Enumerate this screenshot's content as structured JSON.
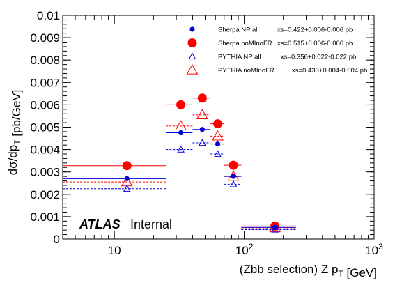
{
  "chart_data": {
    "type": "scatter",
    "xscale": "log",
    "xlim": [
      4,
      1000
    ],
    "ylim": [
      0,
      0.01
    ],
    "xlabel": "(Zbb selection) Z p_T [GeV]",
    "ylabel": "dσ/dp_T [pb/GeV]",
    "x_ticks": [
      {
        "value": 10,
        "label": "10"
      },
      {
        "value": 100,
        "label": "10^2"
      },
      {
        "value": 1000,
        "label": "10^3"
      }
    ],
    "y_ticks": [
      {
        "value": 0,
        "label": "0"
      },
      {
        "value": 0.001,
        "label": "0.001"
      },
      {
        "value": 0.002,
        "label": "0.002"
      },
      {
        "value": 0.003,
        "label": "0.003"
      },
      {
        "value": 0.004,
        "label": "0.004"
      },
      {
        "value": 0.005,
        "label": "0.005"
      },
      {
        "value": 0.006,
        "label": "0.006"
      },
      {
        "value": 0.007,
        "label": "0.007"
      },
      {
        "value": 0.008,
        "label": "0.008"
      },
      {
        "value": 0.009,
        "label": "0.009"
      },
      {
        "value": 0.01,
        "label": "0.01"
      }
    ],
    "series": [
      {
        "name": "Sherpa NP all",
        "xs_label": "xs=0.422+0.006-0.006 pb",
        "marker": "circle-small",
        "color": "#0000dd",
        "line": "solid",
        "points": [
          {
            "x": 12.5,
            "xlo": 0,
            "xhi": 25,
            "y": 0.0027
          },
          {
            "x": 32.5,
            "xlo": 25,
            "xhi": 40,
            "y": 0.00475
          },
          {
            "x": 47.5,
            "xlo": 40,
            "xhi": 55,
            "y": 0.0049
          },
          {
            "x": 62.5,
            "xlo": 55,
            "xhi": 70,
            "y": 0.00425
          },
          {
            "x": 82.5,
            "xlo": 70,
            "xhi": 95,
            "y": 0.0028
          },
          {
            "x": 172.5,
            "xlo": 95,
            "xhi": 250,
            "y": 0.00052
          }
        ]
      },
      {
        "name": "Sherpa noMInoFR",
        "xs_label": "xs=0.515+0.006-0.006 pb",
        "marker": "circle-large",
        "color": "#ff0000",
        "line": "solid",
        "points": [
          {
            "x": 12.5,
            "xlo": 0,
            "xhi": 25,
            "y": 0.00328
          },
          {
            "x": 32.5,
            "xlo": 25,
            "xhi": 40,
            "y": 0.006
          },
          {
            "x": 47.5,
            "xlo": 40,
            "xhi": 55,
            "y": 0.0063
          },
          {
            "x": 62.5,
            "xlo": 55,
            "xhi": 70,
            "y": 0.00515
          },
          {
            "x": 82.5,
            "xlo": 70,
            "xhi": 95,
            "y": 0.0033
          },
          {
            "x": 172.5,
            "xlo": 95,
            "xhi": 250,
            "y": 0.00058
          }
        ]
      },
      {
        "name": "PYTHIA NP all",
        "xs_label": "xs=0.356+0.022-0.022 pb",
        "marker": "triangle-small",
        "color": "#0000dd",
        "line": "dashed",
        "points": [
          {
            "x": 12.5,
            "xlo": 0,
            "xhi": 25,
            "y": 0.00225
          },
          {
            "x": 32.5,
            "xlo": 25,
            "xhi": 40,
            "y": 0.004
          },
          {
            "x": 47.5,
            "xlo": 40,
            "xhi": 55,
            "y": 0.0043
          },
          {
            "x": 62.5,
            "xlo": 55,
            "xhi": 70,
            "y": 0.0038
          },
          {
            "x": 82.5,
            "xlo": 70,
            "xhi": 95,
            "y": 0.00245
          },
          {
            "x": 172.5,
            "xlo": 95,
            "xhi": 250,
            "y": 0.00042
          }
        ]
      },
      {
        "name": "PYTHIA noMInoFR",
        "xs_label": "xs=0.433+0.004-0.004 pb",
        "marker": "triangle-large",
        "color": "#ff0000",
        "line": "dashed",
        "points": [
          {
            "x": 12.5,
            "xlo": 0,
            "xhi": 25,
            "y": 0.00255
          },
          {
            "x": 32.5,
            "xlo": 25,
            "xhi": 40,
            "y": 0.00505
          },
          {
            "x": 47.5,
            "xlo": 40,
            "xhi": 55,
            "y": 0.00555
          },
          {
            "x": 62.5,
            "xlo": 55,
            "xhi": 70,
            "y": 0.0046
          },
          {
            "x": 82.5,
            "xlo": 70,
            "xhi": 95,
            "y": 0.0028
          },
          {
            "x": 172.5,
            "xlo": 95,
            "xhi": 250,
            "y": 0.0005
          }
        ]
      }
    ],
    "legend_position": "top-right",
    "annotation": {
      "bold": "ATLAS",
      "normal": "Internal"
    }
  }
}
